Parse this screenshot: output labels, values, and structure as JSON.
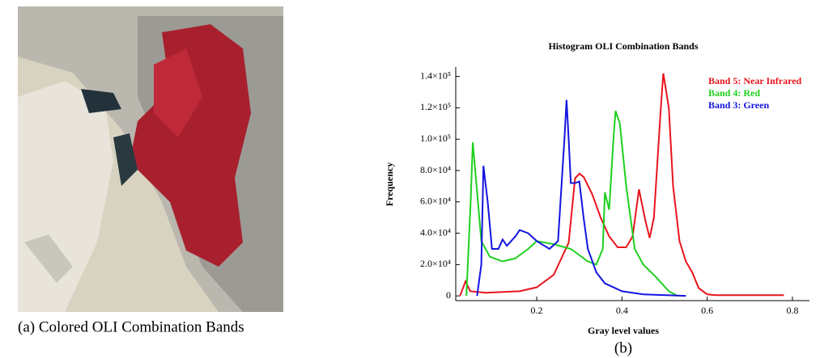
{
  "caption_a": "(a) Colored OLI Combination Bands",
  "caption_b": "(b)",
  "chart_data": {
    "type": "line",
    "title": "Histogram OLI Combination Bands",
    "x_label": "Gray level values",
    "y_label": "Frequency",
    "xlim": [
      0.01,
      0.84
    ],
    "ylim": [
      -3000,
      146000
    ],
    "xticks": [
      0.2,
      0.4,
      0.6,
      0.8
    ],
    "yticks": [
      0,
      {
        "value": 20000,
        "label": "2.0×10⁴"
      },
      {
        "value": 40000,
        "label": "4.0×10⁴"
      },
      {
        "value": 60000,
        "label": "6.0×10⁴"
      },
      {
        "value": 80000,
        "label": "8.0×10⁴"
      },
      {
        "value": 100000,
        "label": "1.0×10⁵"
      },
      {
        "value": 120000,
        "label": "1.2×10⁵"
      },
      {
        "value": 140000,
        "label": "1.4×10⁵"
      }
    ],
    "series": [
      {
        "name": "Band 5: Near Infrared",
        "color": "#e8141c",
        "x": [
          0.02,
          0.033,
          0.044,
          0.08,
          0.16,
          0.2,
          0.24,
          0.275,
          0.29,
          0.3,
          0.31,
          0.33,
          0.35,
          0.37,
          0.39,
          0.41,
          0.425,
          0.44,
          0.455,
          0.465,
          0.475,
          0.49,
          0.497,
          0.51,
          0.52,
          0.535,
          0.55,
          0.565,
          0.58,
          0.6,
          0.62,
          0.78
        ],
        "values": [
          0,
          9300,
          3000,
          2000,
          3000,
          5500,
          13500,
          34000,
          75000,
          78000,
          76000,
          65000,
          50000,
          38000,
          31000,
          31000,
          38000,
          68000,
          48000,
          37000,
          50000,
          115000,
          142000,
          120000,
          70000,
          35000,
          22000,
          15000,
          5000,
          1000,
          500,
          500
        ]
      },
      {
        "name": "Band 4: Red",
        "color": "#1ed01e",
        "x": [
          0.035,
          0.045,
          0.05,
          0.07,
          0.09,
          0.12,
          0.15,
          0.18,
          0.2,
          0.24,
          0.28,
          0.32,
          0.34,
          0.355,
          0.36,
          0.37,
          0.38,
          0.385,
          0.395,
          0.41,
          0.43,
          0.45,
          0.48,
          0.51,
          0.53
        ],
        "values": [
          0,
          60000,
          98000,
          35000,
          25000,
          22000,
          24000,
          30000,
          35000,
          33000,
          30000,
          22000,
          20000,
          30000,
          66000,
          55000,
          100000,
          118000,
          110000,
          70000,
          30000,
          20000,
          12000,
          3000,
          0
        ]
      },
      {
        "name": "Band 3: Green",
        "color": "#1414e0",
        "x": [
          0.06,
          0.07,
          0.075,
          0.085,
          0.095,
          0.11,
          0.12,
          0.13,
          0.15,
          0.16,
          0.18,
          0.2,
          0.23,
          0.25,
          0.265,
          0.27,
          0.275,
          0.28,
          0.29,
          0.3,
          0.31,
          0.32,
          0.34,
          0.36,
          0.4,
          0.45,
          0.55
        ],
        "values": [
          0,
          20000,
          83000,
          60000,
          30000,
          30000,
          36000,
          32000,
          38000,
          42000,
          40000,
          35000,
          30000,
          35000,
          100000,
          125000,
          100000,
          72000,
          72000,
          73000,
          50000,
          30000,
          15000,
          8000,
          3000,
          1000,
          0
        ]
      }
    ]
  }
}
